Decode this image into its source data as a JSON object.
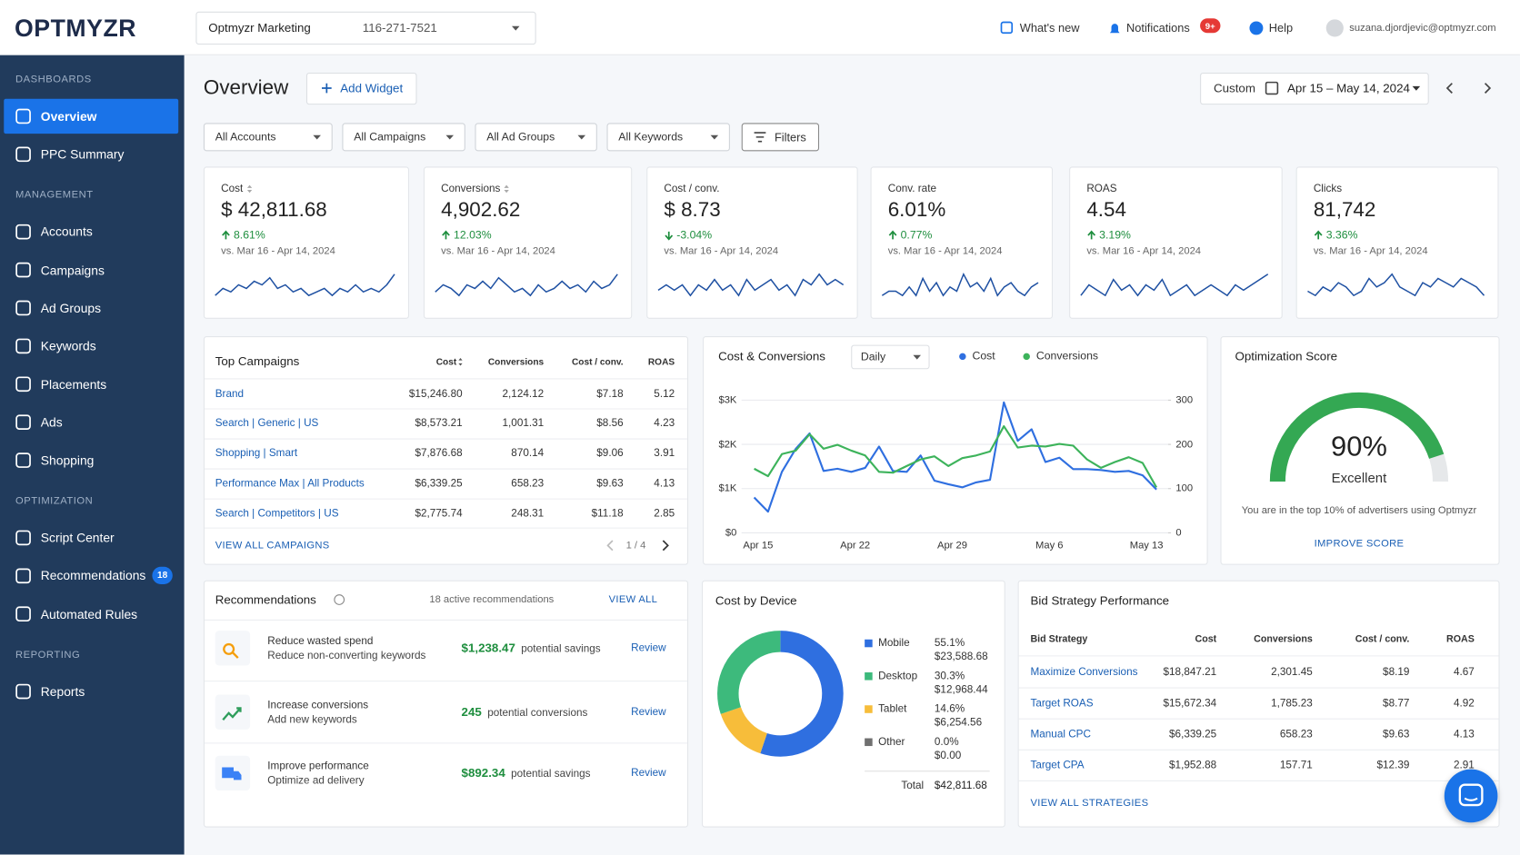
{
  "header": {
    "logo": "OPTMYZR",
    "account_name": "Optmyzr Marketing",
    "account_id": "116-271-7521",
    "whats_new": "What's new",
    "notifications": "Notifications",
    "notifications_badge": "9+",
    "help": "Help",
    "user_email": "suzana.djordjevic@optmyzr.com"
  },
  "sidebar": {
    "sections": [
      {
        "title": "DASHBOARDS",
        "items": [
          {
            "label": "Overview",
            "active": true
          },
          {
            "label": "PPC Summary"
          }
        ]
      },
      {
        "title": "MANAGEMENT",
        "items": [
          {
            "label": "Accounts"
          },
          {
            "label": "Campaigns"
          },
          {
            "label": "Ad Groups"
          },
          {
            "label": "Keywords"
          },
          {
            "label": "Placements"
          },
          {
            "label": "Ads"
          },
          {
            "label": "Shopping"
          }
        ]
      },
      {
        "title": "OPTIMIZATION",
        "items": [
          {
            "label": "Script Center"
          },
          {
            "label": "Recommendations",
            "badge": 18
          },
          {
            "label": "Automated Rules"
          }
        ]
      },
      {
        "title": "REPORTING",
        "items": [
          {
            "label": "Reports"
          }
        ]
      }
    ]
  },
  "page": {
    "title": "Overview",
    "add_widget": "Add Widget",
    "date_mode": "Custom",
    "date_range": "Apr 15 – May 14, 2024"
  },
  "filters": {
    "dropdowns": [
      "All Accounts",
      "All Campaigns",
      "All Ad Groups",
      "All Keywords"
    ],
    "button": "Filters"
  },
  "kpis": [
    {
      "label": "Cost",
      "sortable": true,
      "value": "$ 42,811.68",
      "change": "8.61%",
      "trend": "up",
      "comparison": "vs. Mar 16 - Apr 14, 2024",
      "sparkline": [
        3,
        5,
        4,
        6,
        5,
        7,
        6,
        8,
        5,
        6,
        4,
        5,
        3,
        4,
        5,
        3,
        5,
        4,
        6,
        4,
        5,
        4,
        6,
        9
      ]
    },
    {
      "label": "Conversions",
      "sortable": true,
      "value": "4,902.62",
      "change": "12.03%",
      "trend": "up",
      "comparison": "vs. Mar 16 - Apr 14, 2024",
      "sparkline": [
        4,
        6,
        5,
        3,
        6,
        5,
        7,
        5,
        8,
        6,
        4,
        5,
        3,
        6,
        4,
        5,
        7,
        5,
        6,
        4,
        7,
        5,
        6,
        9
      ]
    },
    {
      "label": "Cost / conv.",
      "value": "$ 8.73",
      "change": "-3.04%",
      "trend": "down",
      "comparison": "vs. Mar 16 - Apr 14, 2024",
      "sparkline": [
        4,
        5,
        4,
        5,
        3,
        5,
        4,
        6,
        4,
        5,
        3,
        6,
        4,
        5,
        6,
        4,
        5,
        3,
        6,
        5,
        7,
        5,
        6,
        5
      ]
    },
    {
      "label": "Conv. rate",
      "value": "6.01%",
      "change": "0.77%",
      "trend": "up",
      "comparison": "vs. Mar 16 - Apr 14, 2024",
      "sparkline": [
        4,
        5,
        5,
        4,
        6,
        4,
        8,
        5,
        7,
        4,
        6,
        5,
        9,
        6,
        7,
        5,
        8,
        4,
        6,
        7,
        5,
        4,
        6,
        7
      ]
    },
    {
      "label": "ROAS",
      "value": "4.54",
      "change": "3.19%",
      "trend": "up",
      "comparison": "vs. Mar 16 - Apr 14, 2024",
      "sparkline": [
        4,
        6,
        5,
        4,
        7,
        5,
        6,
        4,
        6,
        5,
        7,
        4,
        5,
        6,
        4,
        5,
        6,
        5,
        4,
        6,
        5,
        6,
        7,
        8
      ]
    },
    {
      "label": "Clicks",
      "value": "81,742",
      "change": "3.36%",
      "trend": "up",
      "comparison": "vs. Mar 16 - Apr 14, 2024",
      "sparkline": [
        4,
        3,
        5,
        4,
        6,
        5,
        3,
        4,
        7,
        5,
        6,
        8,
        5,
        4,
        3,
        6,
        5,
        7,
        6,
        5,
        7,
        6,
        5,
        3
      ]
    }
  ],
  "top_campaigns": {
    "title": "Top Campaigns",
    "columns": [
      "Cost",
      "Conversions",
      "Cost / conv.",
      "ROAS"
    ],
    "rows": [
      [
        "Brand",
        "$15,246.80",
        "2,124.12",
        "$7.18",
        "5.12"
      ],
      [
        "Search | Generic | US",
        "$8,573.21",
        "1,001.31",
        "$8.56",
        "4.23"
      ],
      [
        "Shopping | Smart",
        "$7,876.68",
        "870.14",
        "$9.06",
        "3.91"
      ],
      [
        "Performance Max | All Products",
        "$6,339.25",
        "658.23",
        "$9.63",
        "4.13"
      ],
      [
        "Search | Competitors | US",
        "$2,775.74",
        "248.31",
        "$11.18",
        "2.85"
      ]
    ],
    "view_all": "VIEW ALL CAMPAIGNS",
    "pagination": "1 / 4"
  },
  "cost_conversions": {
    "type": "line",
    "title": "Cost & Conversions",
    "granularity": "Daily",
    "categories": [
      "Apr 15",
      null,
      null,
      null,
      null,
      null,
      null,
      "Apr 22",
      null,
      null,
      null,
      null,
      null,
      null,
      "Apr 29",
      null,
      null,
      null,
      null,
      null,
      null,
      "May 6",
      null,
      null,
      null,
      null,
      null,
      null,
      "May 13",
      null
    ],
    "series": [
      {
        "name": "Cost",
        "color": "#2f6fe0",
        "values": [
          800,
          480,
          1380,
          1900,
          2250,
          1400,
          1450,
          1380,
          1470,
          1950,
          1400,
          1380,
          1750,
          1180,
          1100,
          1030,
          1140,
          1200,
          2950,
          2080,
          2340,
          1600,
          1700,
          1440,
          1440,
          1420,
          1380,
          1400,
          1300,
          980
        ]
      },
      {
        "name": "Conversions",
        "color": "#3db35b",
        "axis": "y2",
        "values": [
          145,
          128,
          178,
          186,
          223,
          190,
          199,
          186,
          175,
          138,
          136,
          151,
          166,
          173,
          151,
          169,
          175,
          184,
          241,
          193,
          197,
          195,
          201,
          197,
          166,
          147,
          160,
          171,
          158,
          103
        ]
      }
    ],
    "ylim": [
      0,
      3000
    ],
    "yticks": [
      {
        "value": 0,
        "label": "$0"
      },
      {
        "value": 1000,
        "label": "$1K"
      },
      {
        "value": 2000,
        "label": "$2K"
      },
      {
        "value": 3000,
        "label": "$3K"
      }
    ],
    "y2lim": [
      0,
      300
    ],
    "y2ticks": [
      0,
      100,
      200,
      300
    ],
    "grid": true
  },
  "optimization_score": {
    "type": "gauge",
    "title": "Optimization Score",
    "value": 90,
    "value_label": "90%",
    "range": [
      0,
      100
    ],
    "color": "#34a853",
    "status": "Excellent",
    "description": "You are in the top 10% of advertisers using Optmyzr",
    "link": "IMPROVE SCORE"
  },
  "recommendations": {
    "title": "Recommendations",
    "active_count": "18 active recommendations",
    "view_all": "VIEW ALL",
    "items": [
      {
        "title": "Reduce wasted spend",
        "subtitle": "Reduce non-converting keywords",
        "value": "$1,238.47",
        "value_note": "potential savings",
        "action": "Review"
      },
      {
        "title": "Increase conversions",
        "subtitle": "Add new keywords",
        "value": "245",
        "value_note": "potential conversions",
        "action": "Review"
      },
      {
        "title": "Improve performance",
        "subtitle": "Optimize ad delivery",
        "value": "$892.34",
        "value_note": "potential savings",
        "action": "Review"
      }
    ]
  },
  "cost_by_device": {
    "type": "donut",
    "title": "Cost by Device",
    "categories": [
      "Mobile",
      "Desktop",
      "Tablet",
      "Other"
    ],
    "values": [
      55.1,
      30.3,
      14.6,
      0.0
    ],
    "value_labels": [
      "55.1%",
      "30.3%",
      "14.6%",
      "0.0%"
    ],
    "amounts": [
      "$23,588.68",
      "$12,968.44",
      "$6,254.56",
      "$0.00"
    ],
    "colors": [
      "#2f6fe0",
      "#3dba7c",
      "#f7bd3a",
      "#707070"
    ],
    "total_label": "Total",
    "total": "$42,811.68"
  },
  "bid_strategy": {
    "title": "Bid Strategy Performance",
    "columns": [
      "Bid Strategy",
      "Cost",
      "Conversions",
      "Cost / conv.",
      "ROAS"
    ],
    "rows": [
      [
        "Maximize Conversions",
        "$18,847.21",
        "2,301.45",
        "$8.19",
        "4.67"
      ],
      [
        "Target ROAS",
        "$15,672.34",
        "1,785.23",
        "$8.77",
        "4.92"
      ],
      [
        "Manual CPC",
        "$6,339.25",
        "658.23",
        "$9.63",
        "4.13"
      ],
      [
        "Target CPA",
        "$1,952.88",
        "157.71",
        "$12.39",
        "2.91"
      ]
    ],
    "view_all": "VIEW ALL STRATEGIES"
  }
}
